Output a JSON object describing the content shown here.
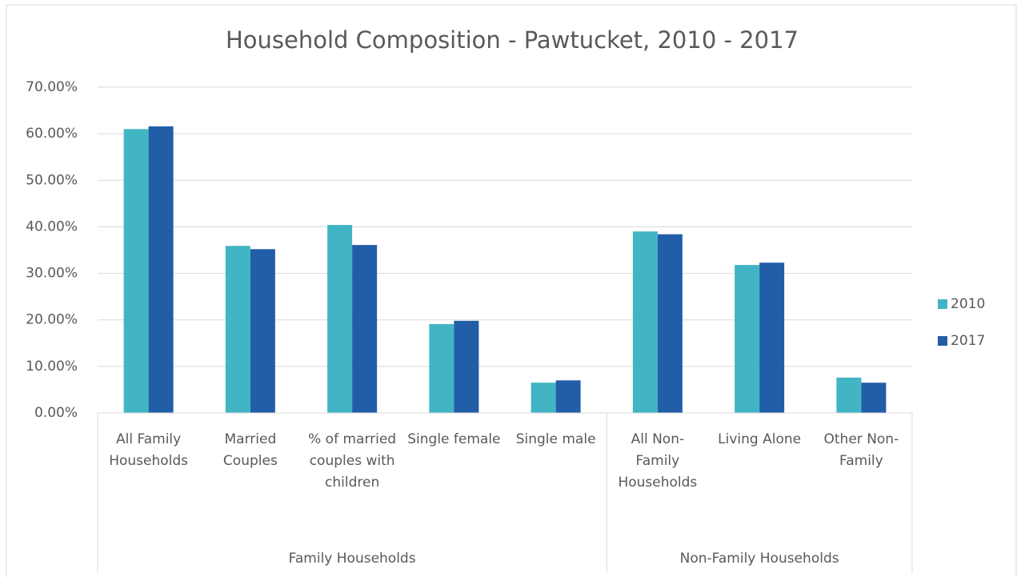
{
  "chart_data": {
    "type": "bar",
    "title": "Household Composition - Pawtucket, 2010 - 2017",
    "groups": [
      {
        "name": "Family Households",
        "categories": [
          "All Family Households",
          "Married Couples",
          "% of married couples with children",
          "Single female",
          "Single male"
        ]
      },
      {
        "name": "Non-Family Households",
        "categories": [
          "All Non-Family Households",
          "Living Alone",
          "Other Non-Family"
        ]
      }
    ],
    "series": [
      {
        "name": "2010",
        "color": "#41b5c4",
        "values": [
          61.0,
          35.9,
          40.4,
          19.1,
          6.5,
          39.0,
          31.8,
          7.6
        ]
      },
      {
        "name": "2017",
        "color": "#225ea8",
        "values": [
          61.6,
          35.2,
          36.1,
          19.8,
          7.0,
          38.4,
          32.3,
          6.5
        ]
      }
    ],
    "ylim": [
      0,
      70
    ],
    "yticks": [
      {
        "value": 0,
        "label": "0.00%"
      },
      {
        "value": 10,
        "label": "10.00%"
      },
      {
        "value": 20,
        "label": "20.00%"
      },
      {
        "value": 30,
        "label": "30.00%"
      },
      {
        "value": 40,
        "label": "40.00%"
      },
      {
        "value": 50,
        "label": "50.00%"
      },
      {
        "value": 60,
        "label": "60.00%"
      },
      {
        "value": 70,
        "label": "70.00%"
      }
    ],
    "grid": true,
    "legend": "right"
  }
}
